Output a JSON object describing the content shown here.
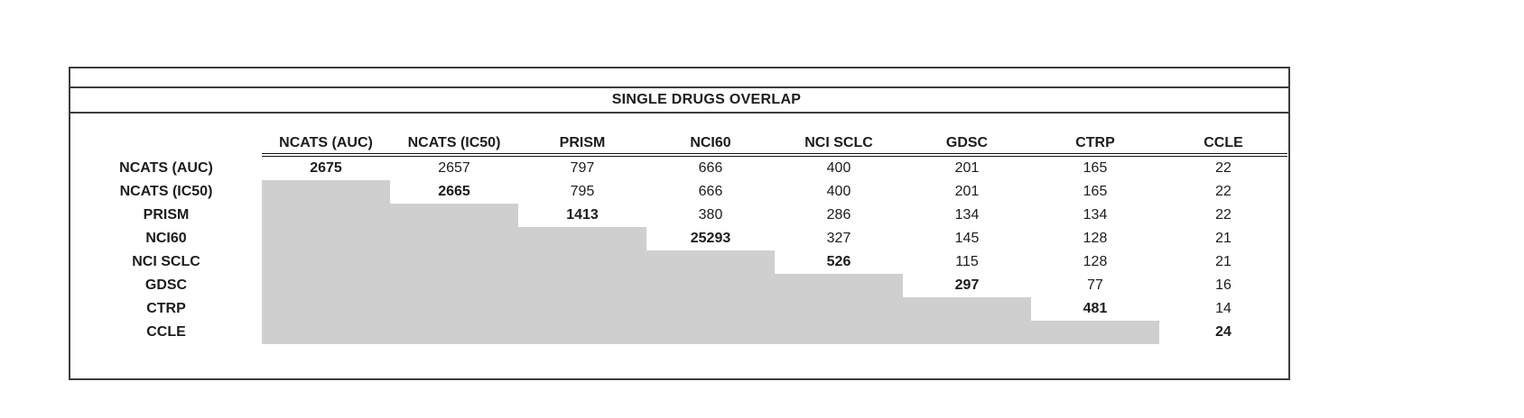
{
  "table": {
    "title": "SINGLE DRUGS OVERLAP",
    "columns": [
      "NCATS (AUC)",
      "NCATS (IC50)",
      "PRISM",
      "NCI60",
      "NCI SCLC",
      "GDSC",
      "CTRP",
      "CCLE"
    ],
    "rows": [
      {
        "label": "NCATS (AUC)",
        "values": [
          2675,
          2657,
          797,
          666,
          400,
          201,
          165,
          22
        ]
      },
      {
        "label": "NCATS (IC50)",
        "values": [
          null,
          2665,
          795,
          666,
          400,
          201,
          165,
          22
        ]
      },
      {
        "label": "PRISM",
        "values": [
          null,
          null,
          1413,
          380,
          286,
          134,
          134,
          22
        ]
      },
      {
        "label": "NCI60",
        "values": [
          null,
          null,
          null,
          25293,
          327,
          145,
          128,
          21
        ]
      },
      {
        "label": "NCI SCLC",
        "values": [
          null,
          null,
          null,
          null,
          526,
          115,
          128,
          21
        ]
      },
      {
        "label": "GDSC",
        "values": [
          null,
          null,
          null,
          null,
          null,
          297,
          77,
          16
        ]
      },
      {
        "label": "CTRP",
        "values": [
          null,
          null,
          null,
          null,
          null,
          null,
          481,
          14
        ]
      },
      {
        "label": "CCLE",
        "values": [
          null,
          null,
          null,
          null,
          null,
          null,
          null,
          24
        ]
      }
    ],
    "style_notes": {
      "diagonal_values_bold": true,
      "lower_triangle_shaded": true
    }
  },
  "colors": {
    "shaded_cell": "#d0cfcf",
    "panel_border": "#3d3d3d",
    "header_rule": "#111111",
    "text": "#1c1c1c",
    "background": "#ffffff"
  }
}
